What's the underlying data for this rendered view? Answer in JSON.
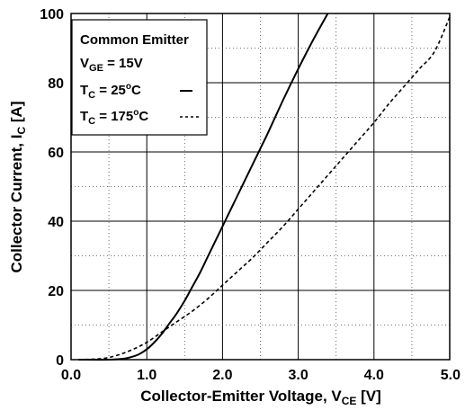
{
  "chart_data": {
    "type": "line",
    "xlabel": {
      "main": "Collector-Emitter Voltage, V",
      "sub": "CE",
      "unit": " [V]"
    },
    "ylabel": {
      "main": "Collector Current, I",
      "sub": "C",
      "unit": " [A]"
    },
    "xlim": [
      0,
      5
    ],
    "ylim": [
      0,
      100
    ],
    "x_ticks": [
      0.0,
      1.0,
      2.0,
      3.0,
      4.0,
      5.0
    ],
    "x_tick_labels": [
      "0.0",
      "1.0",
      "2.0",
      "3.0",
      "4.0",
      "5.0"
    ],
    "y_ticks": [
      0,
      20,
      40,
      60,
      80,
      100
    ],
    "y_tick_labels": [
      "0",
      "20",
      "40",
      "60",
      "80",
      "100"
    ],
    "x_minor_step": 0.5,
    "y_minor_step": 10,
    "grid": true,
    "legend": {
      "placement": "top-left",
      "title": "Common Emitter",
      "condition": {
        "pre": "V",
        "sub": "GE",
        "post": " = 15V"
      },
      "entries": [
        {
          "pre": "T",
          "sub": "C",
          "mid": " = 25",
          "sup": "o",
          "post": "C",
          "style": "solid"
        },
        {
          "pre": "T",
          "sub": "C",
          "mid": " = 175",
          "sup": "o",
          "post": "C",
          "style": "dashed"
        }
      ]
    },
    "series": [
      {
        "style": "solid",
        "x": [
          0.1,
          0.5,
          0.7,
          0.8,
          0.9,
          1.0,
          1.1,
          1.2,
          1.3,
          1.4,
          1.5,
          1.6,
          1.7,
          1.8,
          1.9,
          2.0,
          2.2,
          2.4,
          2.5,
          2.6,
          2.8,
          3.0,
          3.2,
          3.39
        ],
        "y": [
          0,
          0,
          0.3,
          0.8,
          1.6,
          3,
          5,
          7.5,
          10.5,
          13.5,
          17,
          21,
          25,
          29.5,
          34,
          38.5,
          47.5,
          56.5,
          61,
          65.5,
          75,
          84,
          92.5,
          100
        ]
      },
      {
        "style": "dashed",
        "x": [
          0.1,
          0.4,
          0.6,
          0.8,
          1.0,
          1.2,
          1.4,
          1.6,
          1.8,
          2.0,
          2.2,
          2.4,
          2.6,
          2.8,
          3.0,
          3.2,
          3.4,
          3.6,
          3.8,
          4.0,
          4.2,
          4.4,
          4.6,
          4.8,
          5.0
        ],
        "y": [
          0,
          0.3,
          1.2,
          2.8,
          5,
          8,
          11,
          14,
          17.5,
          21.5,
          25.5,
          29.5,
          34,
          38.5,
          43.5,
          48.5,
          53.5,
          58.5,
          63.5,
          68.5,
          74,
          79,
          84,
          89,
          99
        ]
      }
    ]
  }
}
